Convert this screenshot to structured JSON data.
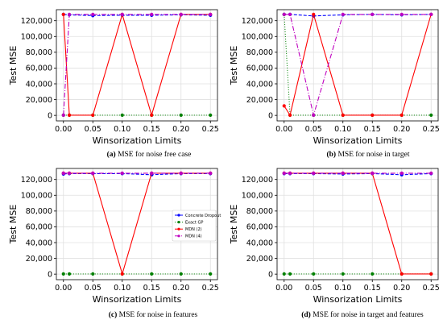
{
  "chart_data": [
    {
      "type": "line",
      "caption_tag": "(a)",
      "caption": "MSE for noise free case",
      "xlabel": "Winsorization Limits",
      "ylabel": "Test MSE",
      "x": [
        0.0,
        0.01,
        0.05,
        0.1,
        0.15,
        0.2,
        0.25
      ],
      "xticks": [
        "0.00",
        "0.05",
        "0.10",
        "0.15",
        "0.20",
        "0.25"
      ],
      "yticks": [
        "0",
        "20,000",
        "40,000",
        "60,000",
        "80,000",
        "100,000",
        "120,000"
      ],
      "xlim": [
        -0.012,
        0.262
      ],
      "ylim": [
        -7000,
        134000
      ],
      "grid": true,
      "legend": false,
      "series": [
        {
          "key": "concrete",
          "values": [
            128000,
            127500,
            126500,
            127000,
            127000,
            127500,
            127000
          ]
        },
        {
          "key": "exactgp",
          "values": [
            300,
            300,
            300,
            300,
            300,
            300,
            300
          ]
        },
        {
          "key": "mdn2",
          "values": [
            128000,
            300,
            300,
            128000,
            300,
            128000,
            128000
          ]
        },
        {
          "key": "mdn4",
          "values": [
            300,
            128000,
            128000,
            128000,
            128000,
            128000,
            128000
          ]
        }
      ]
    },
    {
      "type": "line",
      "caption_tag": "(b)",
      "caption": "MSE for noise in target",
      "xlabel": "Winsorization Limits",
      "ylabel": "Test MSE",
      "x": [
        0.0,
        0.01,
        0.05,
        0.1,
        0.15,
        0.2,
        0.25
      ],
      "xticks": [
        "0.00",
        "0.05",
        "0.10",
        "0.15",
        "0.20",
        "0.25"
      ],
      "yticks": [
        "0",
        "20,000",
        "40,000",
        "60,000",
        "80,000",
        "100,000",
        "120,000"
      ],
      "xlim": [
        -0.012,
        0.262
      ],
      "ylim": [
        -7000,
        134000
      ],
      "grid": true,
      "legend": false,
      "series": [
        {
          "key": "concrete",
          "values": [
            128000,
            128000,
            126000,
            127500,
            128000,
            127500,
            128000
          ]
        },
        {
          "key": "exactgp",
          "values": [
            128000,
            300,
            300,
            300,
            300,
            300,
            300
          ]
        },
        {
          "key": "mdn2",
          "values": [
            12000,
            300,
            128000,
            300,
            300,
            300,
            128000
          ]
        },
        {
          "key": "mdn4",
          "values": [
            128000,
            128000,
            300,
            128000,
            128000,
            128000,
            128000
          ]
        }
      ]
    },
    {
      "type": "line",
      "caption_tag": "(c)",
      "caption": "MSE for noise in features",
      "xlabel": "Winsorization Limits",
      "ylabel": "Test MSE",
      "x": [
        0.0,
        0.01,
        0.05,
        0.1,
        0.15,
        0.2,
        0.25
      ],
      "xticks": [
        "0.00",
        "0.05",
        "0.10",
        "0.15",
        "0.20",
        "0.25"
      ],
      "yticks": [
        "0",
        "20,000",
        "40,000",
        "60,000",
        "80,000",
        "100,000",
        "120,000"
      ],
      "xlim": [
        -0.012,
        0.262
      ],
      "ylim": [
        -7000,
        134000
      ],
      "grid": true,
      "legend": true,
      "legend_position": "center-right",
      "series": [
        {
          "key": "concrete",
          "name": "Concrete Dropout",
          "values": [
            127000,
            127500,
            127500,
            127500,
            126000,
            127500,
            127500
          ]
        },
        {
          "key": "exactgp",
          "name": "Exact GP",
          "values": [
            300,
            300,
            300,
            300,
            300,
            300,
            300
          ]
        },
        {
          "key": "mdn2",
          "name": "MDN (2)",
          "values": [
            128000,
            128000,
            128000,
            300,
            128000,
            128000,
            128000
          ]
        },
        {
          "key": "mdn4",
          "name": "MDN (4)",
          "values": [
            128000,
            128000,
            128000,
            128000,
            128000,
            128000,
            128000
          ]
        }
      ]
    },
    {
      "type": "line",
      "caption_tag": "(d)",
      "caption": "MSE for noise in target and features",
      "xlabel": "Winsorization Limits",
      "ylabel": "Test MSE",
      "x": [
        0.0,
        0.01,
        0.05,
        0.1,
        0.15,
        0.2,
        0.25
      ],
      "xticks": [
        "0.00",
        "0.05",
        "0.10",
        "0.15",
        "0.20",
        "0.25"
      ],
      "yticks": [
        "0",
        "20,000",
        "40,000",
        "60,000",
        "80,000",
        "100,000",
        "120,000"
      ],
      "xlim": [
        -0.012,
        0.262
      ],
      "ylim": [
        -7000,
        134000
      ],
      "grid": true,
      "legend": false,
      "series": [
        {
          "key": "concrete",
          "values": [
            127500,
            127500,
            127500,
            127000,
            127500,
            126000,
            127500
          ]
        },
        {
          "key": "exactgp",
          "values": [
            300,
            300,
            300,
            300,
            300,
            300,
            300
          ]
        },
        {
          "key": "mdn2",
          "values": [
            128000,
            128000,
            128000,
            128000,
            128000,
            300,
            300
          ]
        },
        {
          "key": "mdn4",
          "values": [
            128000,
            128000,
            128000,
            128000,
            128000,
            128000,
            128000
          ]
        }
      ]
    }
  ],
  "series_style": {
    "concrete": {
      "color": "#0000ff",
      "dash": "4,2"
    },
    "exactgp": {
      "color": "#008000",
      "dash": "1,2"
    },
    "mdn2": {
      "color": "#ff0000",
      "dash": ""
    },
    "mdn4": {
      "color": "#bf00bf",
      "dash": "6,2,1,2"
    }
  }
}
